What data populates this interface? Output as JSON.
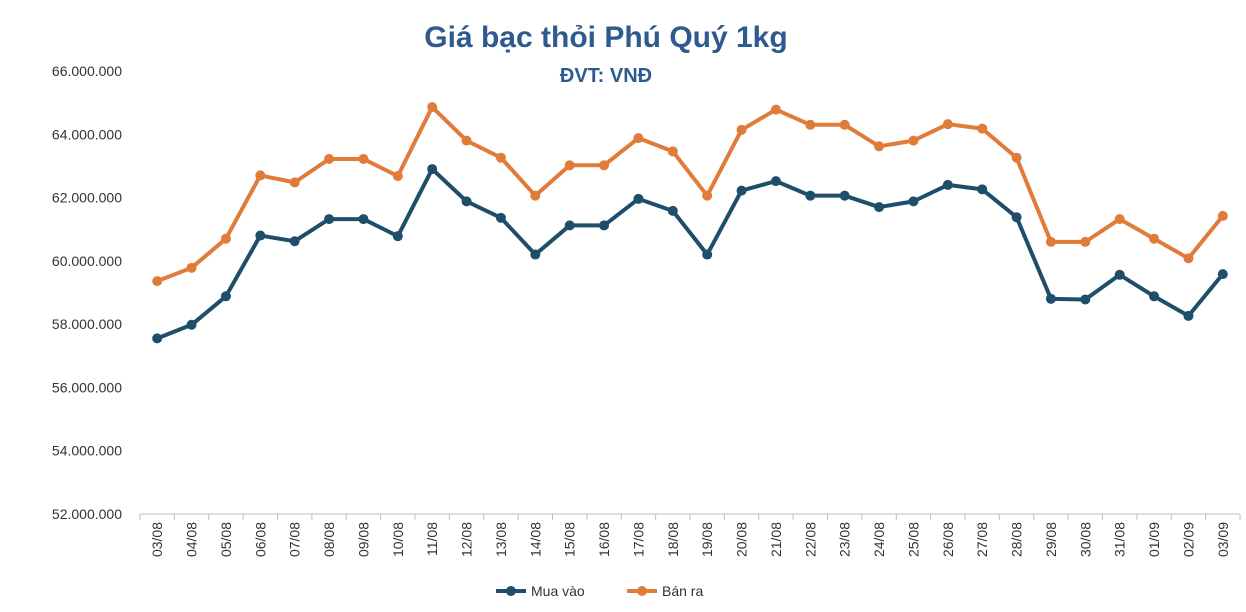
{
  "chart_data": {
    "type": "line",
    "title": "Giá bạc thỏi Phú Quý 1kg",
    "subtitle": "ĐVT: VNĐ",
    "xlabel": "",
    "ylabel": "",
    "ylim": [
      52000000,
      66000000
    ],
    "y_ticks": [
      52000000,
      54000000,
      56000000,
      58000000,
      60000000,
      62000000,
      64000000,
      66000000
    ],
    "y_tick_labels": [
      "52.000.000",
      "54.000.000",
      "56.000.000",
      "58.000.000",
      "60.000.000",
      "62.000.000",
      "64.000.000",
      "66.000.000"
    ],
    "grid": false,
    "legend_position": "bottom",
    "categories": [
      "03/08",
      "04/08",
      "05/08",
      "06/08",
      "07/08",
      "08/08",
      "09/08",
      "10/08",
      "11/08",
      "12/08",
      "13/08",
      "14/08",
      "15/08",
      "16/08",
      "17/08",
      "18/08",
      "19/08",
      "20/08",
      "21/08",
      "22/08",
      "23/08",
      "24/08",
      "25/08",
      "26/08",
      "27/08",
      "28/08",
      "29/08",
      "30/08",
      "31/08",
      "01/09",
      "02/09",
      "03/09"
    ],
    "series": [
      {
        "name": "Mua vào",
        "color": "#1f4e6b",
        "values": [
          57550000,
          57980000,
          58880000,
          60800000,
          60620000,
          61320000,
          61320000,
          60780000,
          62900000,
          61880000,
          61360000,
          60200000,
          61120000,
          61120000,
          61960000,
          61580000,
          60200000,
          62220000,
          62520000,
          62060000,
          62060000,
          61700000,
          61880000,
          62400000,
          62260000,
          61380000,
          58800000,
          58780000,
          59560000,
          58880000,
          58260000,
          59580000
        ]
      },
      {
        "name": "Bán ra",
        "color": "#e07b39",
        "values": [
          59360000,
          59780000,
          60700000,
          62700000,
          62480000,
          63220000,
          63220000,
          62680000,
          64860000,
          63800000,
          63260000,
          62060000,
          63020000,
          63020000,
          63880000,
          63460000,
          62060000,
          64140000,
          64780000,
          64300000,
          64300000,
          63620000,
          63800000,
          64320000,
          64180000,
          63260000,
          60600000,
          60600000,
          61320000,
          60700000,
          60080000,
          61420000
        ]
      }
    ]
  }
}
